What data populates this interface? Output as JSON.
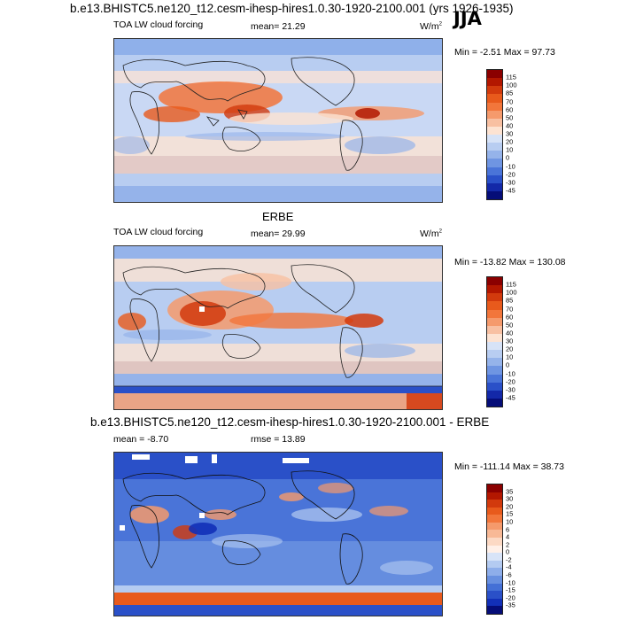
{
  "header": {
    "title": "b.e13.BHISTC5.ne120_t12.cesm-ihesp-hires1.0.30-1920-2100.001 (yrs 1926-1935)",
    "season": "JJA"
  },
  "panels": [
    {
      "top_label": "TOA LW cloud forcing",
      "mean_label": "mean=  21.29",
      "units": "W/m",
      "units_sup": "2",
      "minmax": "Min =  -2.51 Max =  97.73"
    },
    {
      "heading": "ERBE",
      "top_label": "TOA LW cloud forcing",
      "mean_label": "mean=  29.99",
      "units": "W/m",
      "units_sup": "2",
      "minmax": "Min = -13.82 Max = 130.08"
    },
    {
      "heading": "b.e13.BHISTC5.ne120_t12.cesm-ihesp-hires1.0.30-1920-2100.001 - ERBE",
      "mean_label": "mean =  -8.70",
      "rmse_label": "rmse =  13.89",
      "minmax": "Min = -111.14 Max =  38.73"
    }
  ],
  "chart_data": [
    {
      "type": "heatmap",
      "title": "b.e13.BHISTC5.ne120_t12.cesm-ihesp-hires1.0.30-1920-2100.001 (yrs 1926-1935)",
      "subtitle": "TOA LW cloud forcing",
      "season": "JJA",
      "mean": 21.29,
      "min": -2.51,
      "max": 97.73,
      "units": "W/m2",
      "colorbar_levels": [
        115,
        100,
        85,
        70,
        60,
        50,
        40,
        30,
        20,
        10,
        0,
        -10,
        -20,
        -30,
        -45
      ],
      "colorbar_colors": [
        "#8b0000",
        "#b31700",
        "#d23a0d",
        "#e85a1c",
        "#f2763b",
        "#f59a6c",
        "#f8c0a2",
        "#fde3d2",
        "#d7e3f7",
        "#b8cdf1",
        "#95b3ea",
        "#6f95e2",
        "#4a74d8",
        "#2a50c8",
        "#1328a8",
        "#050d78"
      ]
    },
    {
      "type": "heatmap",
      "title": "ERBE",
      "subtitle": "TOA LW cloud forcing",
      "mean": 29.99,
      "min": -13.82,
      "max": 130.08,
      "units": "W/m2",
      "colorbar_levels": [
        115,
        100,
        85,
        70,
        60,
        50,
        40,
        30,
        20,
        10,
        0,
        -10,
        -20,
        -30,
        -45
      ],
      "colorbar_colors": [
        "#8b0000",
        "#b31700",
        "#d23a0d",
        "#e85a1c",
        "#f2763b",
        "#f59a6c",
        "#f8c0a2",
        "#fde3d2",
        "#d7e3f7",
        "#b8cdf1",
        "#95b3ea",
        "#6f95e2",
        "#4a74d8",
        "#2a50c8",
        "#1328a8",
        "#050d78"
      ]
    },
    {
      "type": "heatmap",
      "title": "b.e13.BHISTC5.ne120_t12.cesm-ihesp-hires1.0.30-1920-2100.001 - ERBE",
      "mean": -8.7,
      "rmse": 13.89,
      "min": -111.14,
      "max": 38.73,
      "colorbar_levels": [
        35,
        30,
        20,
        15,
        10,
        6,
        4,
        2,
        0,
        -2,
        -4,
        -6,
        -10,
        -15,
        -20,
        -35
      ],
      "colorbar_colors": [
        "#8b0000",
        "#b31700",
        "#d23a0d",
        "#e85a1c",
        "#f2763b",
        "#f59a6c",
        "#f8b996",
        "#fcd9c4",
        "#fff0e8",
        "#d8e4f8",
        "#b4cbf1",
        "#8eaeea",
        "#6890e0",
        "#4470d6",
        "#2a50c8",
        "#1230b8",
        "#050d78"
      ]
    }
  ]
}
